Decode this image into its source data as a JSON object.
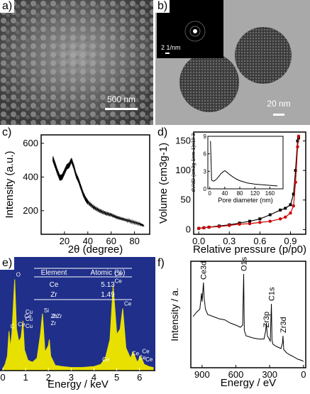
{
  "panels": {
    "a": {
      "label": "a)",
      "scale_bar": "500 nm"
    },
    "b": {
      "label": "b)",
      "scale_bar": "20 nm",
      "inset_scale": "2 1/nm"
    },
    "c": {
      "label": "c)"
    },
    "d": {
      "label": "d)"
    },
    "e": {
      "label": "e)",
      "table": {
        "headers": [
          "Element",
          "Atomic (%)"
        ],
        "rows": [
          [
            "Ce",
            "5.13"
          ],
          [
            "Zr",
            "1.49"
          ]
        ]
      }
    },
    "f": {
      "label": "f)"
    }
  },
  "chart_data": [
    {
      "panel": "c",
      "type": "line",
      "xlabel": "2θ (degree)",
      "ylabel": "Intensity (a.u.)",
      "xlim": [
        0,
        93
      ],
      "ylim": [
        60,
        650
      ],
      "xticks": [
        20,
        40,
        60,
        80
      ],
      "yticks": [
        200,
        400,
        600
      ],
      "x": [
        10,
        12,
        14,
        16,
        18,
        20,
        22,
        24,
        26,
        28,
        30,
        32,
        34,
        36,
        38,
        40,
        45,
        50,
        55,
        60,
        65,
        70,
        75,
        80,
        85,
        88
      ],
      "y": [
        510,
        470,
        430,
        395,
        400,
        430,
        460,
        470,
        500,
        460,
        410,
        380,
        340,
        300,
        270,
        250,
        220,
        200,
        185,
        175,
        160,
        150,
        140,
        130,
        120,
        110
      ],
      "grid": false
    },
    {
      "panel": "d",
      "type": "line",
      "xlabel": "Relative pressure (p/p0)",
      "ylabel": "Volume (cm3g-1)",
      "xlim": [
        -0.05,
        1.05
      ],
      "ylim": [
        -8,
        165
      ],
      "xticks": [
        "0.0",
        "0.3",
        "0.6",
        "0.9"
      ],
      "xtick_values": [
        0,
        0.3,
        0.6,
        0.9
      ],
      "yticks": [
        0,
        50,
        100,
        150
      ],
      "series": [
        {
          "color": "#000000",
          "marker": "square",
          "x": [
            0.0,
            0.05,
            0.1,
            0.2,
            0.3,
            0.4,
            0.5,
            0.6,
            0.7,
            0.8,
            0.85,
            0.9,
            0.93,
            0.95,
            0.97,
            0.98
          ],
          "y": [
            2,
            3,
            4,
            6,
            8,
            11,
            14,
            18,
            25,
            33,
            36,
            42,
            60,
            100,
            150,
            155
          ]
        },
        {
          "color": "#cc0000",
          "marker": "circle",
          "x": [
            0.0,
            0.05,
            0.1,
            0.2,
            0.3,
            0.4,
            0.5,
            0.6,
            0.7,
            0.8,
            0.85,
            0.9,
            0.93,
            0.95,
            0.97,
            0.98
          ],
          "y": [
            2,
            3,
            4,
            5,
            7,
            9,
            10,
            12,
            14,
            18,
            21,
            28,
            40,
            80,
            140,
            158
          ]
        }
      ],
      "inset": {
        "xlabel": "Pore diameter (nm)",
        "ylabel": "dV/dD (cm3g-1nm-1)x10-3",
        "xlim": [
          -5,
          195
        ],
        "ylim": [
          0,
          9
        ],
        "xticks": [
          0,
          40,
          80,
          120,
          160
        ],
        "yticks": [
          0,
          3,
          6,
          9
        ],
        "x": [
          2,
          5,
          10,
          15,
          20,
          25,
          30,
          35,
          40,
          45,
          50,
          60,
          70,
          80,
          90,
          100,
          120,
          140,
          160,
          180
        ],
        "y": [
          8.2,
          1.5,
          1.3,
          1.5,
          1.8,
          2.2,
          2.6,
          2.9,
          3.1,
          2.9,
          2.6,
          2.1,
          1.7,
          1.4,
          1.2,
          1.0,
          0.8,
          0.7,
          0.6,
          0.5
        ]
      }
    },
    {
      "panel": "e",
      "type": "area",
      "xlabel": "Energy / keV",
      "ylabel": "",
      "xlim": [
        0,
        6.6
      ],
      "ylim": [
        0,
        100
      ],
      "xticks": [
        0,
        1,
        2,
        3,
        4,
        5,
        6
      ],
      "x": [
        0.0,
        0.1,
        0.2,
        0.27,
        0.33,
        0.4,
        0.52,
        0.6,
        0.7,
        0.8,
        0.88,
        0.95,
        1.1,
        1.3,
        1.5,
        1.65,
        1.74,
        1.85,
        2.0,
        2.04,
        2.1,
        2.3,
        2.6,
        3.0,
        3.5,
        4.0,
        4.3,
        4.5,
        4.7,
        4.84,
        5.0,
        5.15,
        5.26,
        5.4,
        5.6,
        5.72,
        5.9,
        6.05,
        6.2,
        6.4,
        6.6
      ],
      "y": [
        2,
        6,
        14,
        38,
        22,
        36,
        88,
        40,
        28,
        32,
        48,
        20,
        10,
        8,
        12,
        35,
        55,
        18,
        24,
        30,
        14,
        5,
        4,
        3,
        3,
        4,
        6,
        12,
        30,
        82,
        35,
        40,
        60,
        22,
        12,
        18,
        8,
        14,
        6,
        4,
        3
      ],
      "peak_labels": [
        {
          "text": "C",
          "x": 0.27
        },
        {
          "text": "O",
          "x": 0.52
        },
        {
          "text": "Ce",
          "x": 0.6
        },
        {
          "text": "Cu",
          "x": 0.93
        },
        {
          "text": "Cu",
          "x": 0.93
        },
        {
          "text": "Cu",
          "x": 0.93
        },
        {
          "text": "Ce",
          "x": 0.88
        },
        {
          "text": "Si",
          "x": 1.74
        },
        {
          "text": "Zr",
          "x": 2.04
        },
        {
          "text": "Zr",
          "x": 2.04
        },
        {
          "text": "Zr",
          "x": 2.1
        },
        {
          "text": "Zr",
          "x": 2.3
        },
        {
          "text": "Ce",
          "x": 4.3
        },
        {
          "text": "Ce",
          "x": 4.84
        },
        {
          "text": "Ce",
          "x": 4.84
        },
        {
          "text": "Ce",
          "x": 5.26
        },
        {
          "text": "Ce",
          "x": 5.6
        },
        {
          "text": "Ce",
          "x": 5.9
        },
        {
          "text": "Ce",
          "x": 6.05
        },
        {
          "text": "Ce",
          "x": 6.2
        }
      ],
      "colors": {
        "background": "#1f2f8a",
        "fill": "#e8e000",
        "axis": "#ffffff"
      }
    },
    {
      "panel": "f",
      "type": "line",
      "xlabel": "Energy / eV",
      "ylabel": "Intensity / a.",
      "xlim": [
        1000,
        -20
      ],
      "ylim": [
        0,
        100
      ],
      "xticks": [
        900,
        600,
        300,
        0
      ],
      "x": [
        980,
        950,
        920,
        905,
        900,
        888,
        882,
        870,
        850,
        800,
        750,
        700,
        650,
        600,
        560,
        540,
        531,
        525,
        510,
        450,
        400,
        350,
        335,
        330,
        320,
        295,
        285,
        280,
        270,
        240,
        200,
        185,
        182,
        175,
        150,
        120,
        100,
        50,
        20,
        0
      ],
      "y": [
        48,
        52,
        55,
        70,
        62,
        80,
        66,
        55,
        50,
        48,
        46,
        45,
        42,
        40,
        38,
        40,
        88,
        35,
        30,
        28,
        27,
        27,
        35,
        42,
        30,
        25,
        60,
        26,
        22,
        20,
        18,
        24,
        30,
        17,
        14,
        12,
        11,
        8,
        7,
        6
      ],
      "peak_labels": [
        {
          "text": "Ce3d",
          "x": 890
        },
        {
          "text": "O1s",
          "x": 531
        },
        {
          "text": "Zr3p",
          "x": 333
        },
        {
          "text": "C1s",
          "x": 285
        },
        {
          "text": "Zr3d",
          "x": 182
        }
      ]
    }
  ]
}
